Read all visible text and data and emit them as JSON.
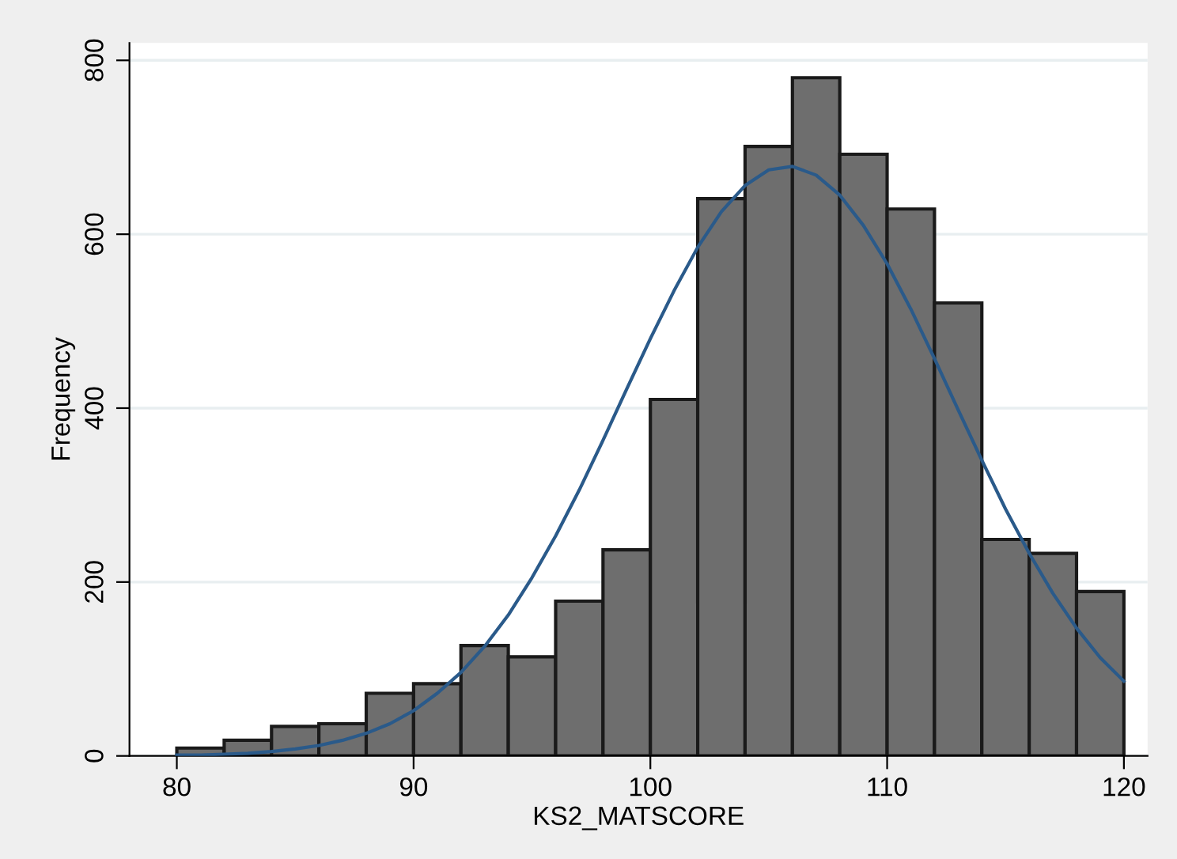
{
  "chart_data": {
    "type": "histogram",
    "xlabel": "KS2_MATSCORE",
    "ylabel": "Frequency",
    "bins": [
      80,
      82,
      84,
      86,
      88,
      90,
      92,
      94,
      96,
      98,
      100,
      102,
      104,
      106,
      108,
      110,
      112,
      114,
      116,
      118,
      120
    ],
    "values": [
      9,
      18,
      34,
      37,
      72,
      83,
      127,
      114,
      178,
      237,
      410,
      641,
      701,
      780,
      692,
      629,
      521,
      249,
      233,
      189
    ],
    "color": "#6e6e6e",
    "series": [
      {
        "type": "line",
        "color": "#2a5a8a",
        "x": [
          80,
          81,
          82,
          83,
          84,
          85,
          86,
          87,
          88,
          89,
          90,
          91,
          92,
          93,
          94,
          95,
          96,
          97,
          98,
          99,
          100,
          101,
          102,
          103,
          104,
          105,
          106,
          107,
          108,
          109,
          110,
          111,
          112,
          113,
          114,
          115,
          116,
          117,
          118,
          119,
          120
        ],
        "values": [
          1,
          1,
          2,
          3,
          5,
          8,
          12,
          18,
          26,
          37,
          52,
          72,
          96,
          126,
          162,
          205,
          253,
          306,
          363,
          422,
          480,
          535,
          585,
          626,
          656,
          674,
          678,
          668,
          645,
          610,
          566,
          514,
          457,
          398,
          340,
          284,
          233,
          187,
          147,
          113,
          86
        ]
      }
    ],
    "xlim": [
      78,
      121
    ],
    "ylim": [
      0,
      820
    ],
    "xticks": [
      80,
      90,
      100,
      110,
      120
    ],
    "yticks": [
      0,
      200,
      400,
      600,
      800
    ],
    "grid": "y",
    "legend": false,
    "marker": "none",
    "line_style": "solid"
  }
}
